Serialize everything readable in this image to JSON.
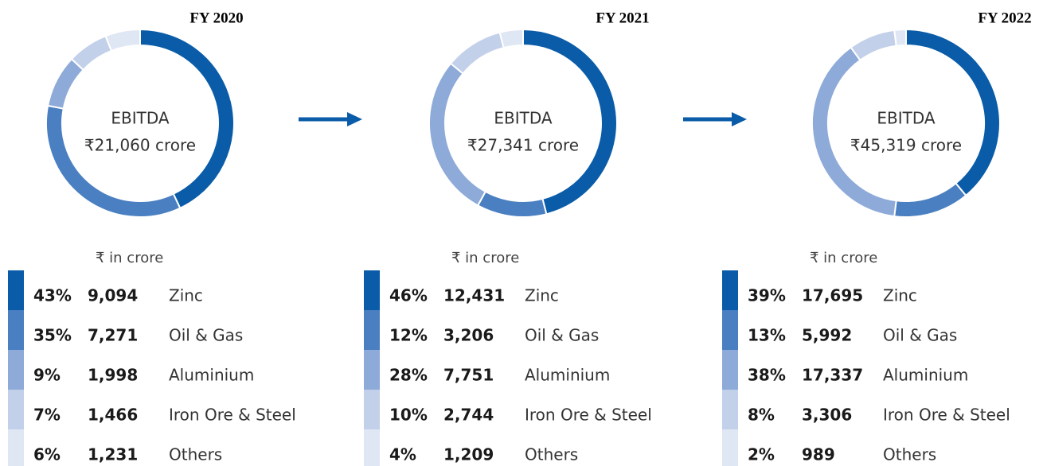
{
  "chart_data": [
    {
      "type": "pie",
      "title": "FY 2020",
      "center_label": "EBITDA",
      "center_value": "₹21,060 crore",
      "unit": "₹ in crore",
      "categories": [
        "Zinc",
        "Oil & Gas",
        "Aluminium",
        "Iron Ore & Steel",
        "Others"
      ],
      "values": [
        43,
        35,
        9,
        7,
        6
      ],
      "value_labels": [
        "43%",
        "35%",
        "9%",
        "7%",
        "6%"
      ],
      "amounts": [
        "9,094",
        "7,271",
        "1,998",
        "1,466",
        "1,231"
      ],
      "colors": [
        "#0a5ca8",
        "#4a7fc1",
        "#8eaad8",
        "#c2d0ea",
        "#e0e7f4"
      ]
    },
    {
      "type": "pie",
      "title": "FY 2021",
      "center_label": "EBITDA",
      "center_value": "₹27,341 crore",
      "unit": "₹ in crore",
      "categories": [
        "Zinc",
        "Oil & Gas",
        "Aluminium",
        "Iron Ore & Steel",
        "Others"
      ],
      "values": [
        46,
        12,
        28,
        10,
        4
      ],
      "value_labels": [
        "46%",
        "12%",
        "28%",
        "10%",
        "4%"
      ],
      "amounts": [
        "12,431",
        "3,206",
        "7,751",
        "2,744",
        "1,209"
      ],
      "colors": [
        "#0a5ca8",
        "#4a7fc1",
        "#8eaad8",
        "#c2d0ea",
        "#e0e7f4"
      ]
    },
    {
      "type": "pie",
      "title": "FY 2022",
      "center_label": "EBITDA",
      "center_value": "₹45,319 crore",
      "unit": "₹ in crore",
      "categories": [
        "Zinc",
        "Oil & Gas",
        "Aluminium",
        "Iron Ore & Steel",
        "Others"
      ],
      "values": [
        39,
        13,
        38,
        8,
        2
      ],
      "value_labels": [
        "39%",
        "13%",
        "38%",
        "8%",
        "2%"
      ],
      "amounts": [
        "17,695",
        "5,992",
        "17,337",
        "3,306",
        "989"
      ],
      "colors": [
        "#0a5ca8",
        "#4a7fc1",
        "#8eaad8",
        "#c2d0ea",
        "#e0e7f4"
      ]
    }
  ]
}
